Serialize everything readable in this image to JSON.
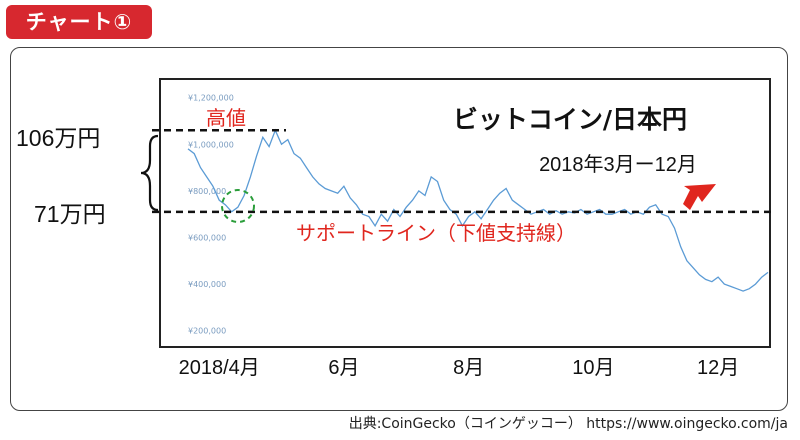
{
  "header": {
    "badge": "チャート①"
  },
  "source": "出典:CoinGecko（コインゲッコー） https://www.oingecko.com/ja",
  "colors": {
    "badge": "#d7282f",
    "line": "#5b9bd5",
    "red": "#e0261e",
    "green": "#2a9d3a"
  },
  "chart_data": {
    "type": "line",
    "title": "ビットコイン/日本円",
    "subtitle": "2018年3月ー12月",
    "x_tick_labels": [
      "2018/4月",
      "6月",
      "8月",
      "10月",
      "12月"
    ],
    "y_tick_labels": [
      "¥1,200,000",
      "¥1,000,000",
      "¥800,000",
      "¥600,000",
      "¥400,000",
      "¥200,000"
    ],
    "y_ticks": [
      1200000,
      1000000,
      800000,
      600000,
      400000,
      200000
    ],
    "ylim": [
      130000,
      1280000
    ],
    "xlim": [
      0,
      9.3
    ],
    "x_tick_positions": [
      0.5,
      2.5,
      4.5,
      6.5,
      8.5
    ],
    "annotations": {
      "high_label": "高値",
      "high_value_label": "106万円",
      "support_value_label": "71万円",
      "support_label": "サポートライン（下値支持線）",
      "high_value": 1060000,
      "support_value": 710000
    },
    "series": [
      {
        "x": [
          0,
          0.1,
          0.2,
          0.3,
          0.4,
          0.5,
          0.6,
          0.7,
          0.8,
          0.9,
          1.0,
          1.1,
          1.2,
          1.3,
          1.4,
          1.5,
          1.6,
          1.7,
          1.8,
          1.9,
          2.0,
          2.1,
          2.2,
          2.3,
          2.4,
          2.5,
          2.6,
          2.7,
          2.8,
          2.9,
          3.0,
          3.1,
          3.2,
          3.3,
          3.4,
          3.5,
          3.6,
          3.7,
          3.8,
          3.9,
          4.0,
          4.1,
          4.2,
          4.3,
          4.4,
          4.5,
          4.6,
          4.7,
          4.8,
          4.9,
          5.0,
          5.1,
          5.2,
          5.3,
          5.4,
          5.5,
          5.6,
          5.7,
          5.8,
          5.9,
          6.0,
          6.1,
          6.2,
          6.3,
          6.4,
          6.5,
          6.6,
          6.7,
          6.8,
          6.9,
          7.0,
          7.1,
          7.2,
          7.3,
          7.4,
          7.5,
          7.6,
          7.7,
          7.8,
          7.9,
          8.0,
          8.1,
          8.2,
          8.3,
          8.4,
          8.5,
          8.6,
          8.7,
          8.8,
          8.9,
          9.0,
          9.1,
          9.2,
          9.3
        ],
        "values": [
          980000,
          960000,
          900000,
          860000,
          820000,
          760000,
          740000,
          710000,
          730000,
          780000,
          860000,
          950000,
          1030000,
          990000,
          1060000,
          1000000,
          1020000,
          960000,
          940000,
          900000,
          860000,
          830000,
          810000,
          800000,
          790000,
          820000,
          770000,
          740000,
          700000,
          690000,
          650000,
          700000,
          670000,
          720000,
          690000,
          730000,
          760000,
          800000,
          780000,
          860000,
          840000,
          760000,
          720000,
          700000,
          650000,
          690000,
          710000,
          680000,
          720000,
          760000,
          790000,
          810000,
          760000,
          740000,
          720000,
          700000,
          710000,
          720000,
          700000,
          715000,
          700000,
          710000,
          705000,
          720000,
          700000,
          710000,
          720000,
          700000,
          700000,
          710000,
          720000,
          700000,
          710000,
          700000,
          730000,
          740000,
          700000,
          690000,
          640000,
          560000,
          500000,
          470000,
          440000,
          420000,
          410000,
          430000,
          400000,
          390000,
          380000,
          370000,
          380000,
          400000,
          430000,
          450000
        ]
      }
    ],
    "grid": false
  }
}
